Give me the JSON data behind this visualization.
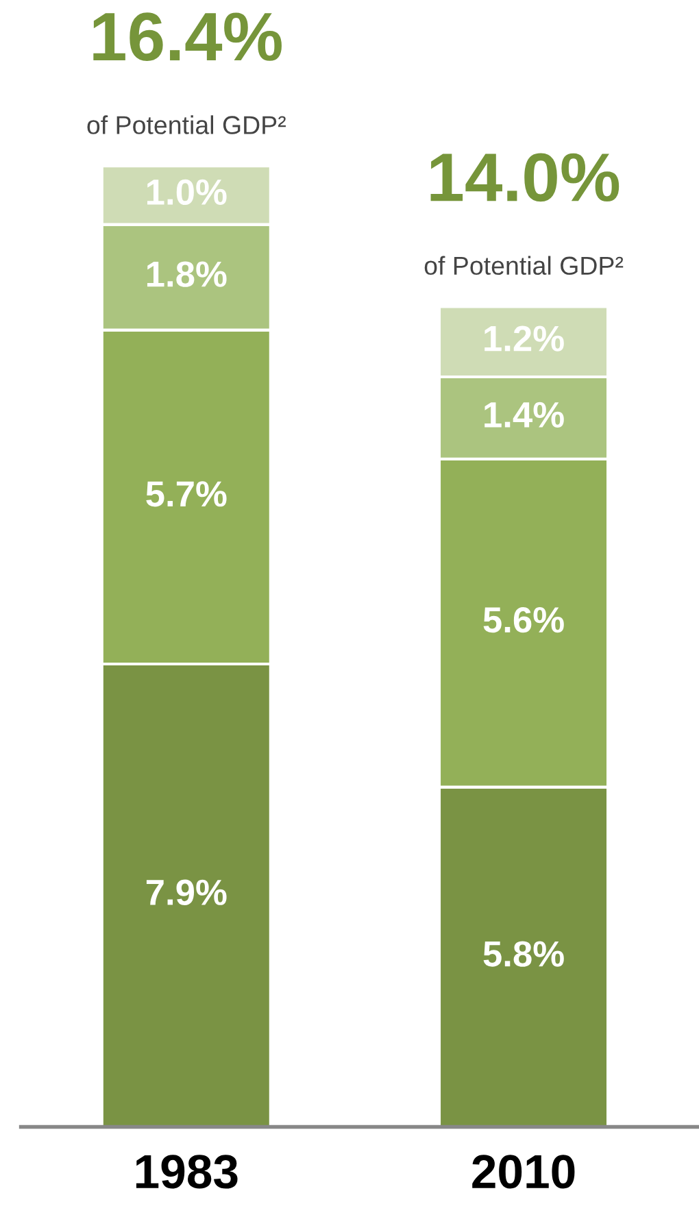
{
  "chart_data": {
    "type": "bar",
    "stacked": true,
    "categories": [
      "1983",
      "2010"
    ],
    "series": [
      {
        "color": "#7a9344",
        "values": [
          7.9,
          5.8
        ],
        "value_labels": [
          "7.9%",
          "5.8%"
        ]
      },
      {
        "color": "#93b058",
        "values": [
          5.7,
          5.6
        ],
        "value_labels": [
          "5.7%",
          "5.6%"
        ]
      },
      {
        "color": "#abc47f",
        "values": [
          1.8,
          1.4
        ],
        "value_labels": [
          "1.8%",
          "1.4%"
        ]
      },
      {
        "color": "#cfdcb5",
        "values": [
          1.0,
          1.2
        ],
        "value_labels": [
          "1.0%",
          "1.2%"
        ]
      }
    ],
    "totals": [
      "16.4%",
      "14.0%"
    ],
    "annotations": [
      {
        "text": "of Potential GDP²",
        "x": "1983",
        "y": 16.4
      },
      {
        "text": "of Potential GDP²",
        "x": "2010",
        "y": 14.0
      }
    ],
    "grid": false,
    "legend": false
  }
}
